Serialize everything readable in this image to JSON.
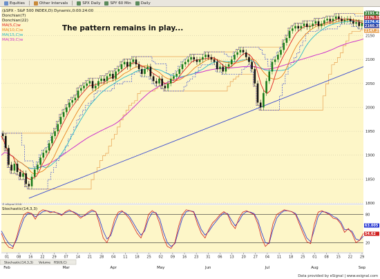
{
  "toolbar": {
    "items": [
      {
        "label": "Equities",
        "icon": "grid-icon"
      },
      {
        "label": "Other Intervals",
        "icon": "chart-icon"
      },
      {
        "label": "SPX Daily",
        "icon": "chart-icon"
      },
      {
        "label": "SPY 60 Min",
        "icon": "chart-icon"
      },
      {
        "label": "Daily",
        "icon": "chart-icon"
      }
    ]
  },
  "colors": {
    "plot_bg": "#fdf6c8",
    "up_bar": "#1a7a1a",
    "down_bar": "#111111",
    "ma5": "#e02020",
    "ma10": "#e8821e",
    "ma15": "#2ab8c8",
    "ma39": "#cc33cc",
    "donchian_fast": "#3a4bd0",
    "donchian_slow": "#e8a050",
    "trendline": "#3a4bd0",
    "stoch_k": "#d02020",
    "stoch_d": "#2030d0"
  },
  "header": {
    "symbol_line": "($SPX - S&P 500 INDEX,D) Dynamic,0:00:24:00",
    "legend": [
      {
        "label": "Donchian(7)",
        "color": "#111111"
      },
      {
        "label": "Donchian(22)",
        "color": "#111111"
      },
      {
        "label": "MA(5,C)w",
        "color": "#e02020"
      },
      {
        "label": "MA(10,C)w",
        "color": "#e8821e"
      },
      {
        "label": "MA(15,C)w",
        "color": "#2ab8c8"
      },
      {
        "label": "MA(39,C)w",
        "color": "#cc33cc"
      }
    ]
  },
  "annotation": "The pattern remains in play...",
  "price_badges": [
    {
      "value": "2193.42",
      "bg": "#2a7a2a"
    },
    {
      "value": "2176.15",
      "bg": "#cc3333"
    },
    {
      "value": "2174.42",
      "bg": "#3366cc"
    },
    {
      "value": "2160.35",
      "bg": "#2a3a9a"
    },
    {
      "value": "2147.25",
      "bg": "#e8a050"
    }
  ],
  "chart_data": {
    "type": "candlestick",
    "title": "($SPX - S&P 500 INDEX,D) Dynamic,0:00:24:00",
    "ylim": [
      1800,
      2210
    ],
    "y_ticks": [
      1800,
      1850,
      1900,
      1950,
      2000,
      2050,
      2100,
      2150,
      2200
    ],
    "x_tick_labels": [
      "01",
      "08",
      "16",
      "22",
      "29",
      "07",
      "14",
      "21",
      "28",
      "04",
      "11",
      "18",
      "25",
      "02",
      "09",
      "16",
      "23",
      "31",
      "06",
      "13",
      "20",
      "27",
      "04",
      "11",
      "18",
      "25",
      "01",
      "08",
      "15",
      "22",
      "29"
    ],
    "month_labels": [
      "Feb",
      "Mar",
      "Apr",
      "May",
      "Jun",
      "Jul",
      "Aug",
      "Sep"
    ],
    "close": [
      1940,
      1915,
      1880,
      1868,
      1882,
      1865,
      1855,
      1862,
      1840,
      1835,
      1855,
      1870,
      1880,
      1895,
      1905,
      1910,
      1925,
      1940,
      1950,
      1965,
      1980,
      1990,
      2000,
      2010,
      2015,
      2020,
      2035,
      2040,
      2045,
      2050,
      2055,
      2040,
      2045,
      2055,
      2060,
      2055,
      2065,
      2070,
      2060,
      2075,
      2080,
      2090,
      2095,
      2085,
      2095,
      2100,
      2090,
      2080,
      2070,
      2080,
      2085,
      2065,
      2055,
      2050,
      2060,
      2045,
      2040,
      2050,
      2060,
      2065,
      2070,
      2080,
      2090,
      2095,
      2100,
      2105,
      2100,
      2095,
      2100,
      2105,
      2110,
      2105,
      2100,
      2095,
      2080,
      2085,
      2075,
      2085,
      2090,
      2100,
      2110,
      2115,
      2120,
      2115,
      2105,
      2095,
      2080,
      2050,
      2010,
      2000,
      2030,
      2055,
      2075,
      2095,
      2100,
      2110,
      2120,
      2135,
      2145,
      2160,
      2165,
      2170,
      2165,
      2170,
      2175,
      2168,
      2170,
      2175,
      2180,
      2170,
      2175,
      2182,
      2185,
      2180,
      2185,
      2190,
      2185,
      2180,
      2183,
      2185,
      2180,
      2175,
      2178,
      2170,
      2176
    ],
    "ma39_start": 1900,
    "stochastic": {
      "label": "Stochastic(14,3,3)",
      "levels": [
        80,
        20
      ],
      "ylim": [
        0,
        100
      ],
      "k": [
        40,
        20,
        10,
        8,
        30,
        60,
        80,
        85,
        82,
        70,
        85,
        90,
        88,
        84,
        86,
        82,
        78,
        86,
        90,
        85,
        80,
        72,
        78,
        85,
        90,
        86,
        60,
        30,
        20,
        40,
        70,
        85,
        88,
        80,
        70,
        55,
        40,
        30,
        50,
        80,
        88,
        82,
        60,
        30,
        12,
        8,
        20,
        55,
        80,
        90,
        88,
        85,
        60,
        40,
        30,
        48,
        62,
        70,
        80,
        86,
        80,
        60,
        50,
        72,
        85,
        88,
        84,
        80,
        60,
        30,
        12,
        20,
        60,
        80,
        85,
        90,
        88,
        86,
        80,
        60,
        40,
        22,
        18,
        60,
        85,
        88,
        84,
        80,
        72,
        70,
        60,
        42,
        50,
        40,
        20,
        25,
        40
      ],
      "d": [
        45,
        30,
        18,
        12,
        25,
        50,
        72,
        82,
        82,
        75,
        80,
        86,
        88,
        86,
        85,
        83,
        80,
        84,
        87,
        86,
        82,
        76,
        77,
        82,
        87,
        86,
        70,
        45,
        28,
        35,
        60,
        80,
        86,
        83,
        75,
        62,
        48,
        36,
        45,
        70,
        84,
        84,
        70,
        42,
        20,
        12,
        18,
        45,
        72,
        86,
        88,
        86,
        68,
        48,
        36,
        44,
        56,
        66,
        76,
        83,
        82,
        68,
        56,
        66,
        80,
        86,
        85,
        82,
        68,
        42,
        20,
        18,
        48,
        72,
        82,
        88,
        88,
        86,
        82,
        66,
        48,
        30,
        22,
        48,
        76,
        86,
        85,
        82,
        76,
        72,
        64,
        48,
        48,
        44,
        28,
        25,
        34
      ]
    }
  },
  "stoch_badges": [
    {
      "value": "63.005",
      "bg": "#2030d0"
    },
    {
      "value": "54.62",
      "bg": "#d02020"
    }
  ],
  "footer": {
    "tabs": [
      "Stochastic(14,3,3)",
      "Volume",
      "RSI(9,C)"
    ],
    "copyright": "Data provided by eSignal | www.esignal.com",
    "small_note": "© eSignal 2016"
  }
}
